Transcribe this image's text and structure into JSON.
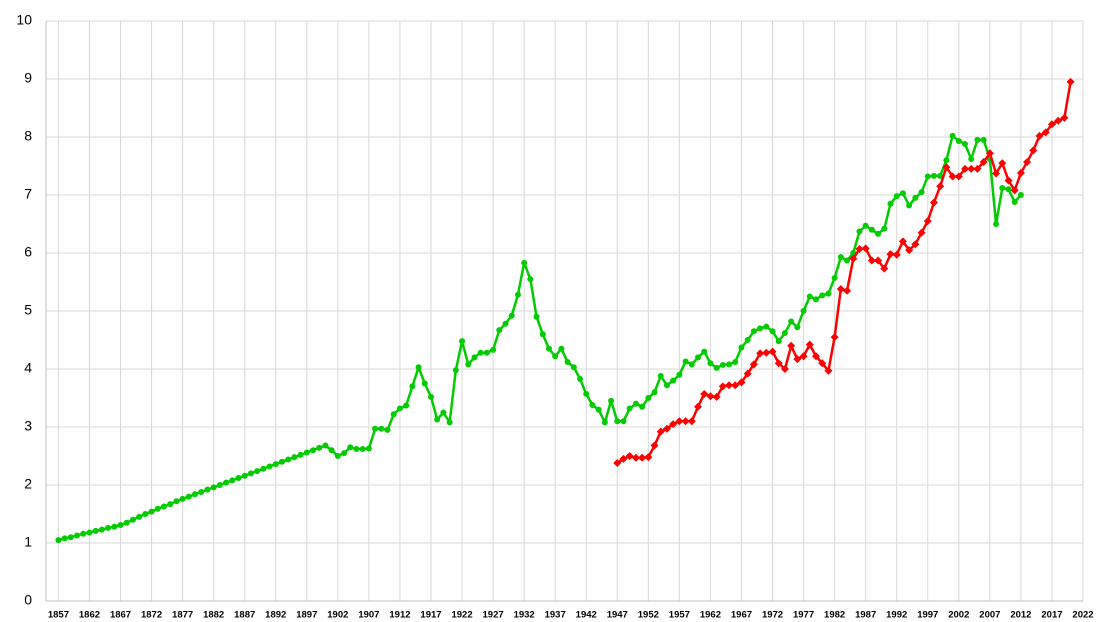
{
  "chart_data": {
    "type": "line",
    "x": [
      1857,
      1858,
      1859,
      1860,
      1861,
      1862,
      1863,
      1864,
      1865,
      1866,
      1867,
      1868,
      1869,
      1870,
      1871,
      1872,
      1873,
      1874,
      1875,
      1876,
      1877,
      1878,
      1879,
      1880,
      1881,
      1882,
      1883,
      1884,
      1885,
      1886,
      1887,
      1888,
      1889,
      1890,
      1891,
      1892,
      1893,
      1894,
      1895,
      1896,
      1897,
      1898,
      1899,
      1900,
      1901,
      1902,
      1903,
      1904,
      1905,
      1906,
      1907,
      1908,
      1909,
      1910,
      1911,
      1912,
      1913,
      1914,
      1915,
      1916,
      1917,
      1918,
      1919,
      1920,
      1921,
      1922,
      1923,
      1924,
      1925,
      1926,
      1927,
      1928,
      1929,
      1930,
      1931,
      1932,
      1933,
      1934,
      1935,
      1936,
      1937,
      1938,
      1939,
      1940,
      1941,
      1942,
      1943,
      1944,
      1945,
      1946,
      1947,
      1948,
      1949,
      1950,
      1951,
      1952,
      1953,
      1954,
      1955,
      1956,
      1957,
      1958,
      1959,
      1960,
      1961,
      1962,
      1963,
      1964,
      1965,
      1966,
      1967,
      1968,
      1969,
      1970,
      1971,
      1972,
      1973,
      1974,
      1975,
      1976,
      1977,
      1978,
      1979,
      1980,
      1981,
      1982,
      1983,
      1984,
      1985,
      1986,
      1987,
      1988,
      1989,
      1990,
      1991,
      1992,
      1993,
      1994,
      1995,
      1996,
      1997,
      1998,
      1999,
      2000,
      2001,
      2002,
      2003,
      2004,
      2005,
      2006,
      2007,
      2008,
      2009,
      2010,
      2011,
      2012,
      2013,
      2014,
      2015,
      2016,
      2017,
      2018,
      2019,
      2020
    ],
    "series": [
      {
        "color": "#00cc00",
        "marker": "circle",
        "values": [
          1.05,
          1.08,
          1.1,
          1.13,
          1.16,
          1.18,
          1.21,
          1.23,
          1.26,
          1.28,
          1.31,
          1.35,
          1.4,
          1.45,
          1.5,
          1.54,
          1.59,
          1.63,
          1.67,
          1.72,
          1.76,
          1.8,
          1.84,
          1.88,
          1.92,
          1.96,
          2.0,
          2.04,
          2.08,
          2.12,
          2.16,
          2.2,
          2.24,
          2.28,
          2.32,
          2.36,
          2.4,
          2.44,
          2.48,
          2.52,
          2.56,
          2.6,
          2.64,
          2.68,
          2.6,
          2.5,
          2.55,
          2.65,
          2.62,
          2.62,
          2.63,
          2.97,
          2.97,
          2.95,
          3.22,
          3.32,
          3.37,
          3.7,
          4.03,
          3.75,
          3.52,
          3.13,
          3.25,
          3.08,
          3.98,
          4.48,
          4.08,
          4.2,
          4.28,
          4.28,
          4.33,
          4.67,
          4.78,
          4.92,
          5.28,
          5.83,
          5.55,
          4.9,
          4.6,
          4.35,
          4.22,
          4.35,
          4.12,
          4.03,
          3.83,
          3.57,
          3.38,
          3.3,
          3.08,
          3.45,
          3.1,
          3.1,
          3.32,
          3.4,
          3.35,
          3.5,
          3.6,
          3.88,
          3.72,
          3.8,
          3.9,
          4.13,
          4.08,
          4.2,
          4.3,
          4.1,
          4.02,
          4.07,
          4.08,
          4.12,
          4.37,
          4.5,
          4.65,
          4.7,
          4.73,
          4.65,
          4.48,
          4.62,
          4.82,
          4.72,
          5.0,
          5.25,
          5.2,
          5.27,
          5.3,
          5.57,
          5.93,
          5.87,
          6.0,
          6.37,
          6.47,
          6.4,
          6.33,
          6.42,
          6.85,
          6.98,
          7.03,
          6.82,
          6.95,
          7.05,
          7.32,
          7.33,
          7.33,
          7.6,
          8.02,
          7.93,
          7.88,
          7.62,
          7.95,
          7.95,
          7.62,
          6.5,
          7.12,
          7.1,
          6.88,
          7.0,
          null,
          null,
          null,
          null,
          null,
          null,
          null,
          null
        ]
      },
      {
        "color": "#ff0000",
        "marker": "diamond",
        "values": [
          null,
          null,
          null,
          null,
          null,
          null,
          null,
          null,
          null,
          null,
          null,
          null,
          null,
          null,
          null,
          null,
          null,
          null,
          null,
          null,
          null,
          null,
          null,
          null,
          null,
          null,
          null,
          null,
          null,
          null,
          null,
          null,
          null,
          null,
          null,
          null,
          null,
          null,
          null,
          null,
          null,
          null,
          null,
          null,
          null,
          null,
          null,
          null,
          null,
          null,
          null,
          null,
          null,
          null,
          null,
          null,
          null,
          null,
          null,
          null,
          null,
          null,
          null,
          null,
          null,
          null,
          null,
          null,
          null,
          null,
          null,
          null,
          null,
          null,
          null,
          null,
          null,
          null,
          null,
          null,
          null,
          null,
          null,
          null,
          null,
          null,
          null,
          null,
          null,
          null,
          2.38,
          2.45,
          2.5,
          2.47,
          2.47,
          2.48,
          2.68,
          2.92,
          2.97,
          3.05,
          3.1,
          3.1,
          3.1,
          3.35,
          3.57,
          3.53,
          3.52,
          3.7,
          3.72,
          3.72,
          3.77,
          3.92,
          4.08,
          4.27,
          4.28,
          4.3,
          4.1,
          4.0,
          4.4,
          4.17,
          4.22,
          4.42,
          4.22,
          4.1,
          3.97,
          4.55,
          5.38,
          5.35,
          5.9,
          6.07,
          6.08,
          5.87,
          5.87,
          5.73,
          5.98,
          5.97,
          6.2,
          6.05,
          6.15,
          6.35,
          6.55,
          6.87,
          7.15,
          7.48,
          7.32,
          7.32,
          7.45,
          7.45,
          7.45,
          7.57,
          7.72,
          7.37,
          7.55,
          7.25,
          7.08,
          7.38,
          7.57,
          7.77,
          8.02,
          8.08,
          8.22,
          8.28,
          8.33,
          8.95
        ]
      }
    ],
    "xlim": [
      1855,
      2022
    ],
    "xticks": [
      1857,
      1862,
      1867,
      1872,
      1877,
      1882,
      1887,
      1892,
      1897,
      1902,
      1907,
      1912,
      1917,
      1922,
      1927,
      1932,
      1937,
      1942,
      1947,
      1952,
      1957,
      1962,
      1967,
      1972,
      1977,
      1982,
      1987,
      1992,
      1997,
      2002,
      2007,
      2012,
      2017,
      2022
    ],
    "ylim": [
      0,
      10
    ],
    "yticks": [
      0,
      1,
      2,
      3,
      4,
      5,
      6,
      7,
      8,
      9,
      10
    ],
    "grid": true
  }
}
